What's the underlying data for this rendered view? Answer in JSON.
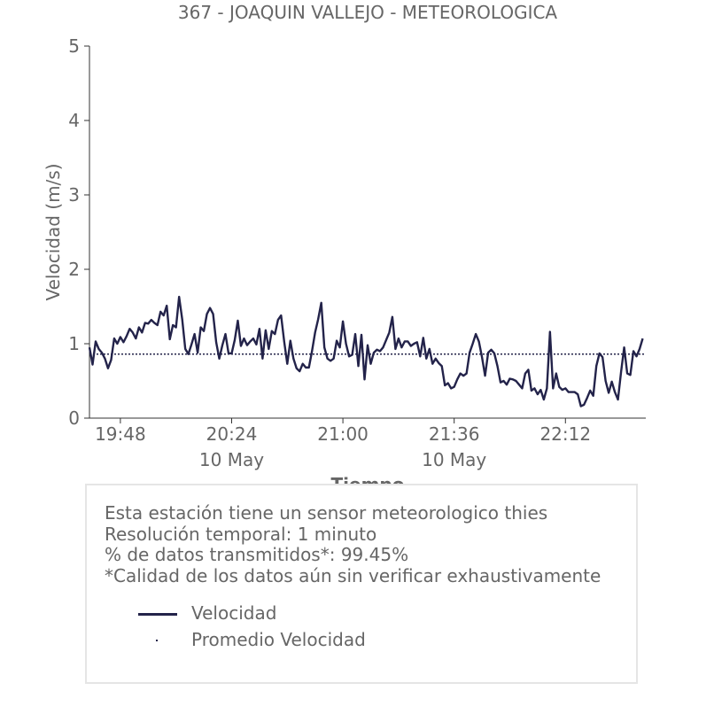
{
  "chart_data": {
    "type": "line",
    "title": "367 - JOAQUIN VALLEJO - METEOROLOGICA",
    "xlabel": "Tiempo",
    "ylabel": "Velocidad (m/s)",
    "ylim": [
      0,
      5
    ],
    "yticks": [
      "0",
      "1",
      "2",
      "3",
      "4",
      "5"
    ],
    "xlim": [
      "19:38",
      "22:38"
    ],
    "xticks": [
      {
        "time": "19:48",
        "label": "19:48",
        "sublabel": ""
      },
      {
        "time": "20:24",
        "label": "20:24",
        "sublabel": "10 May"
      },
      {
        "time": "21:00",
        "label": "21:00",
        "sublabel": ""
      },
      {
        "time": "21:36",
        "label": "21:36",
        "sublabel": "10 May"
      },
      {
        "time": "22:12",
        "label": "22:12",
        "sublabel": ""
      }
    ],
    "grid": false,
    "color": "#23234a",
    "series": [
      {
        "name": "Velocidad",
        "style": "solid",
        "points": [
          [
            "19:38",
            0.95
          ],
          [
            "19:39",
            0.72
          ],
          [
            "19:40",
            1.03
          ],
          [
            "19:41",
            0.93
          ],
          [
            "19:42",
            0.88
          ],
          [
            "19:43",
            0.8
          ],
          [
            "19:44",
            0.67
          ],
          [
            "19:45",
            0.78
          ],
          [
            "19:46",
            1.07
          ],
          [
            "19:47",
            1.0
          ],
          [
            "19:48",
            1.09
          ],
          [
            "19:49",
            1.02
          ],
          [
            "19:50",
            1.1
          ],
          [
            "19:51",
            1.2
          ],
          [
            "19:52",
            1.15
          ],
          [
            "19:53",
            1.07
          ],
          [
            "19:54",
            1.22
          ],
          [
            "19:55",
            1.15
          ],
          [
            "19:56",
            1.28
          ],
          [
            "19:57",
            1.27
          ],
          [
            "19:58",
            1.32
          ],
          [
            "19:59",
            1.28
          ],
          [
            "20:00",
            1.25
          ],
          [
            "20:01",
            1.43
          ],
          [
            "20:02",
            1.38
          ],
          [
            "20:03",
            1.51
          ],
          [
            "20:04",
            1.06
          ],
          [
            "20:05",
            1.25
          ],
          [
            "20:06",
            1.22
          ],
          [
            "20:07",
            1.63
          ],
          [
            "20:08",
            1.33
          ],
          [
            "20:09",
            0.93
          ],
          [
            "20:10",
            0.86
          ],
          [
            "20:11",
            0.99
          ],
          [
            "20:12",
            1.13
          ],
          [
            "20:13",
            0.88
          ],
          [
            "20:14",
            1.22
          ],
          [
            "20:15",
            1.17
          ],
          [
            "20:16",
            1.4
          ],
          [
            "20:17",
            1.48
          ],
          [
            "20:18",
            1.4
          ],
          [
            "20:19",
            1.02
          ],
          [
            "20:20",
            0.8
          ],
          [
            "20:21",
            0.98
          ],
          [
            "20:22",
            1.13
          ],
          [
            "20:23",
            0.87
          ],
          [
            "20:24",
            0.87
          ],
          [
            "20:25",
            1.05
          ],
          [
            "20:26",
            1.31
          ],
          [
            "20:27",
            0.97
          ],
          [
            "20:28",
            1.07
          ],
          [
            "20:29",
            0.98
          ],
          [
            "20:30",
            1.03
          ],
          [
            "20:31",
            1.07
          ],
          [
            "20:32",
            0.99
          ],
          [
            "20:33",
            1.2
          ],
          [
            "20:34",
            0.8
          ],
          [
            "20:35",
            1.18
          ],
          [
            "20:36",
            0.93
          ],
          [
            "20:37",
            1.17
          ],
          [
            "20:38",
            1.13
          ],
          [
            "20:39",
            1.32
          ],
          [
            "20:40",
            1.38
          ],
          [
            "20:41",
            1.03
          ],
          [
            "20:42",
            0.73
          ],
          [
            "20:43",
            1.04
          ],
          [
            "20:44",
            0.8
          ],
          [
            "20:45",
            0.67
          ],
          [
            "20:46",
            0.63
          ],
          [
            "20:47",
            0.73
          ],
          [
            "20:48",
            0.68
          ],
          [
            "20:49",
            0.68
          ],
          [
            "20:50",
            0.9
          ],
          [
            "20:51",
            1.15
          ],
          [
            "20:52",
            1.33
          ],
          [
            "20:53",
            1.55
          ],
          [
            "20:54",
            0.95
          ],
          [
            "20:55",
            0.8
          ],
          [
            "20:56",
            0.77
          ],
          [
            "20:57",
            0.8
          ],
          [
            "20:58",
            1.04
          ],
          [
            "20:59",
            0.95
          ],
          [
            "21:00",
            1.3
          ],
          [
            "21:01",
            1.0
          ],
          [
            "21:02",
            0.83
          ],
          [
            "21:03",
            0.85
          ],
          [
            "21:04",
            1.13
          ],
          [
            "21:05",
            0.7
          ],
          [
            "21:06",
            1.12
          ],
          [
            "21:07",
            0.52
          ],
          [
            "21:08",
            0.98
          ],
          [
            "21:09",
            0.73
          ],
          [
            "21:10",
            0.88
          ],
          [
            "21:11",
            0.92
          ],
          [
            "21:12",
            0.9
          ],
          [
            "21:13",
            0.95
          ],
          [
            "21:14",
            1.05
          ],
          [
            "21:15",
            1.15
          ],
          [
            "21:16",
            1.36
          ],
          [
            "21:17",
            0.93
          ],
          [
            "21:18",
            1.07
          ],
          [
            "21:19",
            0.95
          ],
          [
            "21:20",
            1.03
          ],
          [
            "21:21",
            1.03
          ],
          [
            "21:22",
            0.97
          ],
          [
            "21:23",
            1.0
          ],
          [
            "21:24",
            1.02
          ],
          [
            "21:25",
            0.83
          ],
          [
            "21:26",
            1.08
          ],
          [
            "21:27",
            0.8
          ],
          [
            "21:28",
            0.93
          ],
          [
            "21:29",
            0.73
          ],
          [
            "21:30",
            0.8
          ],
          [
            "21:31",
            0.74
          ],
          [
            "21:32",
            0.7
          ],
          [
            "21:33",
            0.44
          ],
          [
            "21:34",
            0.47
          ],
          [
            "21:35",
            0.4
          ],
          [
            "21:36",
            0.42
          ],
          [
            "21:37",
            0.52
          ],
          [
            "21:38",
            0.6
          ],
          [
            "21:39",
            0.57
          ],
          [
            "21:40",
            0.6
          ],
          [
            "21:41",
            0.88
          ],
          [
            "21:42",
            1.0
          ],
          [
            "21:43",
            1.13
          ],
          [
            "21:44",
            1.03
          ],
          [
            "21:45",
            0.82
          ],
          [
            "21:46",
            0.57
          ],
          [
            "21:47",
            0.88
          ],
          [
            "21:48",
            0.92
          ],
          [
            "21:49",
            0.87
          ],
          [
            "21:50",
            0.7
          ],
          [
            "21:51",
            0.48
          ],
          [
            "21:52",
            0.5
          ],
          [
            "21:53",
            0.45
          ],
          [
            "21:54",
            0.53
          ],
          [
            "21:55",
            0.52
          ],
          [
            "21:56",
            0.5
          ],
          [
            "21:57",
            0.45
          ],
          [
            "21:58",
            0.4
          ],
          [
            "21:59",
            0.6
          ],
          [
            "22:00",
            0.65
          ],
          [
            "22:01",
            0.37
          ],
          [
            "22:02",
            0.4
          ],
          [
            "22:03",
            0.32
          ],
          [
            "22:04",
            0.38
          ],
          [
            "22:05",
            0.25
          ],
          [
            "22:06",
            0.4
          ],
          [
            "22:07",
            1.16
          ],
          [
            "22:08",
            0.4
          ],
          [
            "22:09",
            0.6
          ],
          [
            "22:10",
            0.42
          ],
          [
            "22:11",
            0.38
          ],
          [
            "22:12",
            0.4
          ],
          [
            "22:13",
            0.35
          ],
          [
            "22:14",
            0.35
          ],
          [
            "22:15",
            0.35
          ],
          [
            "22:16",
            0.32
          ],
          [
            "22:17",
            0.16
          ],
          [
            "22:18",
            0.18
          ],
          [
            "22:19",
            0.27
          ],
          [
            "22:20",
            0.37
          ],
          [
            "22:21",
            0.3
          ],
          [
            "22:22",
            0.7
          ],
          [
            "22:23",
            0.87
          ],
          [
            "22:24",
            0.82
          ],
          [
            "22:25",
            0.5
          ],
          [
            "22:26",
            0.34
          ],
          [
            "22:27",
            0.49
          ],
          [
            "22:28",
            0.35
          ],
          [
            "22:29",
            0.25
          ],
          [
            "22:30",
            0.62
          ],
          [
            "22:31",
            0.95
          ],
          [
            "22:32",
            0.6
          ],
          [
            "22:33",
            0.58
          ],
          [
            "22:34",
            0.9
          ],
          [
            "22:35",
            0.83
          ],
          [
            "22:36",
            0.93
          ],
          [
            "22:37",
            1.07
          ]
        ]
      },
      {
        "name": "Promedio Velocidad",
        "style": "dotted",
        "points": [
          [
            "19:38",
            0.86
          ],
          [
            "22:38",
            0.86
          ]
        ]
      }
    ]
  },
  "info": {
    "lines": [
      "Esta estación tiene un sensor meteorologico thies",
      "Resolución temporal: 1 minuto",
      "% de datos transmitidos*: 99.45%",
      "*Calidad de los datos aún sin verificar exhaustivamente"
    ]
  }
}
